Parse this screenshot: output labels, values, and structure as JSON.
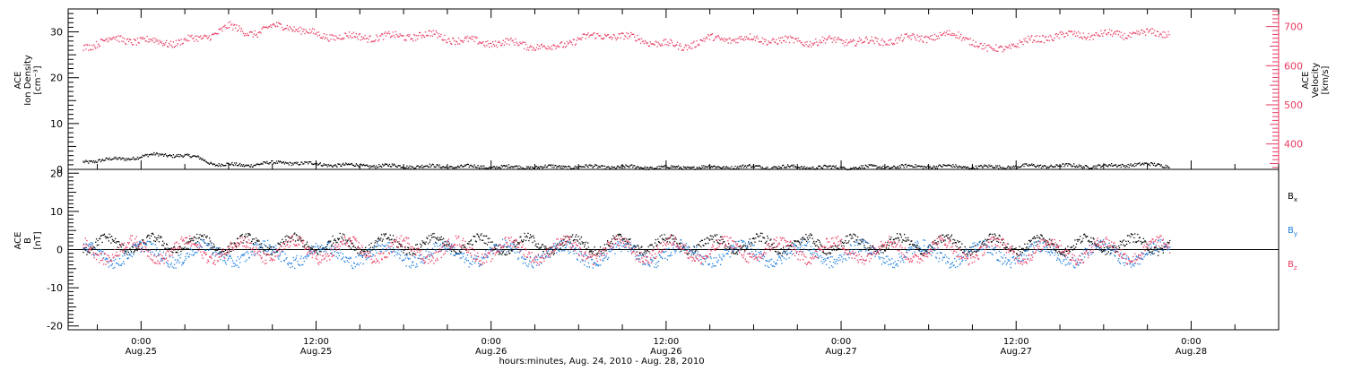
{
  "chart_data": [
    {
      "type": "scatter",
      "panel": "top",
      "left_axis": {
        "label_lines": [
          "ACE",
          "Ion Density",
          "[cm⁻³]"
        ],
        "ylim": [
          0,
          35
        ],
        "ticks": [
          0,
          10,
          20,
          30
        ],
        "color": "#000000"
      },
      "right_axis": {
        "label_lines": [
          "ACE",
          "Velocity",
          "[km/s]"
        ],
        "ylim": [
          335,
          745
        ],
        "ticks": [
          400,
          500,
          600,
          700
        ],
        "color": "#e83a5f"
      },
      "series": [
        {
          "axis": "left",
          "color": "#000000",
          "keyframes": [
            [
              -4,
              1.8
            ],
            [
              -1,
              2.5
            ],
            [
              1,
              3.3
            ],
            [
              2.5,
              3.2
            ],
            [
              4,
              2.6
            ],
            [
              5,
              1.2
            ],
            [
              7,
              1.0
            ],
            [
              8,
              1.3
            ],
            [
              10,
              1.6
            ],
            [
              11,
              1.4
            ],
            [
              14,
              1.0
            ],
            [
              18,
              0.8
            ],
            [
              22,
              0.7
            ],
            [
              26,
              0.6
            ],
            [
              30,
              0.7
            ],
            [
              36,
              0.5
            ],
            [
              42,
              0.7
            ],
            [
              48,
              0.5
            ],
            [
              54,
              0.8
            ],
            [
              58,
              0.6
            ],
            [
              62,
              0.9
            ],
            [
              66,
              0.8
            ],
            [
              68,
              1.2
            ],
            [
              70.5,
              1.0
            ]
          ]
        },
        {
          "axis": "right",
          "color": "#e83a5f",
          "keyframes": [
            [
              -4,
              650
            ],
            [
              -2,
              670
            ],
            [
              0,
              665
            ],
            [
              2,
              660
            ],
            [
              4,
              670
            ],
            [
              6,
              700
            ],
            [
              7,
              690
            ],
            [
              8,
              685
            ],
            [
              9,
              700
            ],
            [
              10,
              705
            ],
            [
              11,
              690
            ],
            [
              12,
              680
            ],
            [
              14,
              675
            ],
            [
              17,
              675
            ],
            [
              20,
              680
            ],
            [
              22,
              665
            ],
            [
              24,
              660
            ],
            [
              26,
              658
            ],
            [
              28,
              645
            ],
            [
              30,
              670
            ],
            [
              32,
              680
            ],
            [
              34,
              670
            ],
            [
              36,
              655
            ],
            [
              37,
              650
            ],
            [
              39,
              670
            ],
            [
              42,
              670
            ],
            [
              45,
              662
            ],
            [
              48,
              665
            ],
            [
              50,
              662
            ],
            [
              52,
              668
            ],
            [
              54,
              675
            ],
            [
              56,
              680
            ],
            [
              57,
              665
            ],
            [
              58,
              640
            ],
            [
              60,
              655
            ],
            [
              62,
              675
            ],
            [
              64,
              680
            ],
            [
              66,
              680
            ],
            [
              68,
              682
            ],
            [
              70.5,
              685
            ]
          ]
        }
      ]
    },
    {
      "type": "scatter",
      "panel": "bottom",
      "left_axis": {
        "label_lines": [
          "ACE",
          "B",
          "[nT]"
        ],
        "ylim": [
          -21,
          21
        ],
        "ticks": [
          -20,
          -10,
          0,
          10,
          20
        ],
        "color": "#000000"
      },
      "zero_line": true,
      "legend": {
        "placement": "right",
        "entries": [
          {
            "text": "B",
            "sub": "x",
            "color": "#000000"
          },
          {
            "text": "B",
            "sub": "y",
            "color": "#1e7fe0"
          },
          {
            "text": "B",
            "sub": "z",
            "color": "#e83a5f"
          }
        ]
      },
      "series": [
        {
          "name": "Bx",
          "color": "#000000",
          "base": 1.5,
          "amp": 1.8,
          "period": 3.2,
          "noise": 1.2,
          "phase": 0.0
        },
        {
          "name": "By",
          "color": "#1e7fe0",
          "base": -1.0,
          "amp": 2.2,
          "period": 4.1,
          "noise": 1.6,
          "phase": 1.3
        },
        {
          "name": "Bz",
          "color": "#e83a5f",
          "base": 0.0,
          "amp": 2.4,
          "period": 3.7,
          "noise": 1.5,
          "phase": 2.6
        }
      ]
    }
  ],
  "x_axis": {
    "range_hours": [
      -5,
      78
    ],
    "title": "hours:minutes, Aug. 24, 2010 - Aug. 28, 2010",
    "ticks": [
      {
        "hour": 0,
        "time": "0:00",
        "date": "Aug.25"
      },
      {
        "hour": 12,
        "time": "12:00",
        "date": "Aug.25"
      },
      {
        "hour": 24,
        "time": "0:00",
        "date": "Aug.26"
      },
      {
        "hour": 36,
        "time": "12:00",
        "date": "Aug.26"
      },
      {
        "hour": 48,
        "time": "0:00",
        "date": "Aug.27"
      },
      {
        "hour": 60,
        "time": "12:00",
        "date": "Aug.27"
      },
      {
        "hour": 72,
        "time": "0:00",
        "date": "Aug.28"
      }
    ],
    "minor_step_hours": 3,
    "data_end_hour": 70.5
  }
}
